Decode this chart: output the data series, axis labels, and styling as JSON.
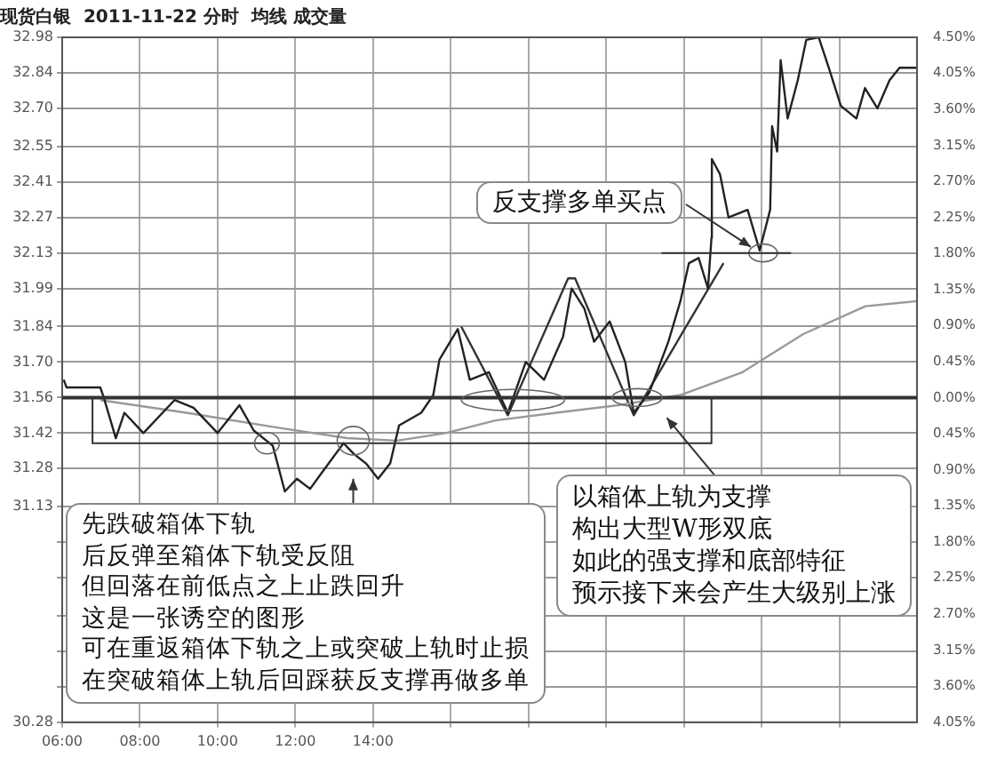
{
  "chart_data": {
    "type": "line",
    "title": "现货白银  2011-11-22 分时  均线 成交量",
    "marker": "none",
    "line_style": "solid",
    "grid": true,
    "xlim": [
      6,
      28
    ],
    "xticks": [
      {
        "value": 6,
        "label": "06:00"
      },
      {
        "value": 8,
        "label": "08:00"
      },
      {
        "value": 10,
        "label": "10:00"
      },
      {
        "value": 12,
        "label": "12:00"
      },
      {
        "value": 14,
        "label": "14:00"
      },
      {
        "value": 16,
        "label": null
      },
      {
        "value": 18,
        "label": null
      },
      {
        "value": 20,
        "label": null
      },
      {
        "value": 22,
        "label": null
      },
      {
        "value": 24,
        "label": null
      },
      {
        "value": 26,
        "label": null
      }
    ],
    "ylim": [
      30.28,
      32.98
    ],
    "yticks": [
      32.98,
      32.84,
      {
        "value": 32.7,
        "label": "32.70"
      },
      32.55,
      32.41,
      32.27,
      32.13,
      31.99,
      31.84,
      {
        "value": 31.7,
        "label": "31.70"
      },
      31.56,
      31.42,
      31.28,
      31.13,
      {
        "value": 30.99,
        "label": null
      },
      {
        "value": 30.85,
        "label": null
      },
      {
        "value": 30.7,
        "label": null
      },
      {
        "value": 30.56,
        "label": null
      },
      {
        "value": 30.42,
        "label": null
      },
      30.28
    ],
    "y2lim": [
      -4.05,
      4.5
    ],
    "y2ticks": [
      {
        "value": 4.5,
        "label": "4.50%"
      },
      {
        "value": 4.05,
        "label": "4.05%"
      },
      {
        "value": 3.6,
        "label": "3.60%"
      },
      {
        "value": 3.15,
        "label": "3.15%"
      },
      {
        "value": 2.7,
        "label": "2.70%"
      },
      {
        "value": 2.25,
        "label": "2.25%"
      },
      {
        "value": 1.8,
        "label": "1.80%"
      },
      {
        "value": 1.35,
        "label": "1.35%"
      },
      {
        "value": 0.9,
        "label": "0.90%"
      },
      {
        "value": 0.45,
        "label": "0.45%"
      },
      {
        "value": 0,
        "label": "0.00%"
      },
      {
        "value": -0.45,
        "label": "0.45%"
      },
      {
        "value": -0.9,
        "label": "0.90%"
      },
      {
        "value": -1.35,
        "label": "1.35%"
      },
      {
        "value": -1.8,
        "label": "1.80%"
      },
      {
        "value": -2.25,
        "label": "2.25%"
      },
      {
        "value": -2.7,
        "label": "2.70%"
      },
      {
        "value": -3.15,
        "label": "3.15%"
      },
      {
        "value": -3.6,
        "label": "3.60%"
      },
      {
        "value": -4.05,
        "label": "4.05%"
      }
    ],
    "ref_lines": [
      {
        "axis": "y",
        "value": 31.56,
        "color": "#333333"
      }
    ],
    "series": [
      {
        "color": "#222222",
        "x": [
          6.04,
          6.11,
          6.98,
          7.07,
          7.38,
          7.6,
          8.09,
          8.89,
          9.38,
          10.0,
          10.56,
          10.93,
          11.42,
          11.73,
          12.04,
          12.38,
          12.71,
          13.24,
          13.49,
          13.82,
          14.13,
          14.44,
          14.67,
          15.24,
          15.55,
          15.71,
          16.18,
          16.49,
          16.98,
          17.47,
          17.93,
          18.4,
          18.89,
          19.11,
          19.44,
          19.69,
          20.09,
          20.49,
          20.71,
          21.11,
          21.6,
          21.91,
          22.13,
          22.38,
          22.62,
          22.71,
          22.72,
          22.93,
          23.15,
          23.64,
          23.95,
          24.22,
          24.27,
          24.4,
          24.49,
          24.67,
          24.93,
          25.15,
          25.47,
          25.73,
          26.04,
          26.44,
          26.66,
          26.98,
          27.29,
          27.55,
          28.0
        ],
        "values": [
          31.63,
          31.6,
          31.6,
          31.56,
          31.4,
          31.5,
          31.42,
          31.55,
          31.52,
          31.42,
          31.53,
          31.43,
          31.37,
          31.19,
          31.24,
          31.2,
          31.27,
          31.38,
          31.34,
          31.3,
          31.24,
          31.3,
          31.45,
          31.5,
          31.57,
          31.71,
          31.83,
          31.63,
          31.66,
          31.5,
          31.7,
          31.63,
          31.8,
          31.99,
          31.91,
          31.78,
          31.86,
          31.7,
          31.5,
          31.58,
          31.78,
          31.94,
          32.09,
          32.11,
          31.99,
          32.19,
          32.5,
          32.44,
          32.27,
          32.3,
          32.14,
          32.3,
          32.63,
          32.53,
          32.89,
          32.66,
          32.81,
          32.97,
          32.98,
          32.86,
          32.71,
          32.66,
          32.78,
          32.7,
          32.81,
          32.86,
          32.86
        ]
      },
      {
        "color": "#999999",
        "x": [
          6.98,
          9.2,
          11.6,
          13.33,
          14.62,
          15.87,
          17.15,
          18.71,
          20.31,
          21.91,
          23.51,
          25.07,
          26.67,
          28.0
        ],
        "values": [
          31.55,
          31.5,
          31.44,
          31.4,
          31.39,
          31.42,
          31.47,
          31.5,
          31.53,
          31.57,
          31.66,
          31.81,
          31.92,
          31.94
        ]
      },
      {
        "type": "line",
        "color": "#333333",
        "x": [
          16.27,
          17.47,
          19.02,
          19.2,
          20.71,
          23.02
        ],
        "values": [
          31.84,
          31.49,
          32.03,
          32.03,
          31.49,
          32.09
        ]
      }
    ],
    "annotations": [
      {
        "text": "反支撑多单买点",
        "x": 23.95,
        "y": 32.14
      },
      "先跌破箱体下轨",
      "后反弹至箱体下轨受反阻",
      "但回落在前低点之上止跌回升",
      "这是一张诱空的图形",
      "可在重返箱体下轨之上或突破上轨时止损",
      "在突破箱体上轨后回踩获反支撑再做多单",
      "以箱体上轨为支撑",
      "构出大型W形双底",
      "如此的强支撑和底部特征",
      "预示接下来会产生大级别上涨"
    ]
  }
}
